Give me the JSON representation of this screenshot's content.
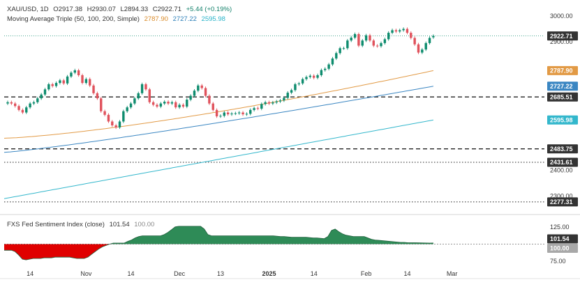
{
  "header": {
    "symbol": "XAU/USD, 1D",
    "open": "O2917.38",
    "high": "H2930.07",
    "low": "L2894.33",
    "close": "C2922.71",
    "change": "+5.44 (+0.19%)",
    "ma_title": "Moving Average Triple (50, 100, 200, Simple)",
    "ma50_value": "2787.90",
    "ma100_value": "2727.22",
    "ma200_value": "2595.98"
  },
  "indicator_header": {
    "title": "FXS Fed Sentiment Index (close)",
    "value": "101.54",
    "baseline": "100.00"
  },
  "colors": {
    "up": "#0e8c6e",
    "down": "#e0525c",
    "ma50": "#e29a45",
    "ma100": "#3a86c2",
    "ma200": "#33b7cc",
    "sentiment_above": "#2e8b57",
    "sentiment_below": "#e00000",
    "price_tag": "#333333"
  },
  "chart_data": [
    {
      "type": "candlestick",
      "y_axis": {
        "ylim": [
          2250,
          3030
        ],
        "ticks": [
          "3000.00",
          "2900.00",
          "2400.00",
          "2300.00"
        ]
      },
      "x_axis": {
        "ticks": [
          "14",
          "Nov",
          "14",
          "Dec",
          "13",
          "2025",
          "14",
          "Feb",
          "14",
          "Mar"
        ],
        "tick_index": [
          6,
          21,
          33,
          46,
          57,
          70,
          82,
          96,
          107,
          119
        ]
      },
      "price_labels": [
        {
          "label": "2922.71",
          "value": 2922.71,
          "kind": "last"
        },
        {
          "label": "2787.90",
          "value": 2787.9,
          "kind": "ma50"
        },
        {
          "label": "2727.22",
          "value": 2727.22,
          "kind": "ma100"
        },
        {
          "label": "2685.51",
          "value": 2685.51,
          "kind": "level"
        },
        {
          "label": "2595.98",
          "value": 2595.98,
          "kind": "ma200"
        },
        {
          "label": "2483.75",
          "value": 2483.75,
          "kind": "level"
        },
        {
          "label": "2431.61",
          "value": 2431.61,
          "kind": "level"
        },
        {
          "label": "2277.31",
          "value": 2277.31,
          "kind": "level"
        }
      ],
      "horizontal_levels": [
        {
          "value": 2685.51,
          "style": "dashed"
        },
        {
          "value": 2483.75,
          "style": "dashed"
        },
        {
          "value": 2431.61,
          "style": "dotted"
        },
        {
          "value": 2277.31,
          "style": "dotted"
        }
      ],
      "closes": [
        2665,
        2660,
        2650,
        2635,
        2625,
        2645,
        2660,
        2665,
        2680,
        2695,
        2715,
        2735,
        2728,
        2740,
        2750,
        2738,
        2765,
        2780,
        2789,
        2770,
        2740,
        2755,
        2730,
        2700,
        2680,
        2630,
        2616,
        2590,
        2575,
        2567,
        2590,
        2630,
        2645,
        2660,
        2680,
        2700,
        2735,
        2715,
        2665,
        2655,
        2648,
        2660,
        2667,
        2660,
        2665,
        2645,
        2655,
        2648,
        2675,
        2690,
        2710,
        2730,
        2720,
        2690,
        2660,
        2635,
        2610,
        2612,
        2625,
        2618,
        2621,
        2622,
        2625,
        2618,
        2620,
        2635,
        2642,
        2640,
        2658,
        2665,
        2660,
        2664,
        2668,
        2672,
        2682,
        2702,
        2712,
        2735,
        2738,
        2755,
        2763,
        2768,
        2760,
        2770,
        2790,
        2795,
        2812,
        2835,
        2856,
        2875,
        2875,
        2905,
        2916,
        2930,
        2885,
        2905,
        2925,
        2905,
        2885,
        2883,
        2895,
        2910,
        2935,
        2945,
        2940,
        2945,
        2950,
        2935,
        2915,
        2890,
        2858,
        2870,
        2895,
        2915,
        2922.71
      ],
      "opens": [
        2660,
        2665,
        2660,
        2650,
        2635,
        2625,
        2645,
        2660,
        2665,
        2680,
        2695,
        2715,
        2735,
        2728,
        2740,
        2750,
        2738,
        2765,
        2780,
        2789,
        2770,
        2740,
        2755,
        2730,
        2700,
        2680,
        2630,
        2616,
        2590,
        2575,
        2567,
        2590,
        2630,
        2645,
        2660,
        2680,
        2700,
        2735,
        2715,
        2665,
        2655,
        2648,
        2660,
        2667,
        2660,
        2665,
        2645,
        2655,
        2648,
        2675,
        2690,
        2710,
        2730,
        2720,
        2690,
        2660,
        2635,
        2610,
        2612,
        2625,
        2618,
        2621,
        2622,
        2625,
        2618,
        2620,
        2635,
        2642,
        2640,
        2658,
        2665,
        2660,
        2664,
        2668,
        2672,
        2682,
        2702,
        2712,
        2735,
        2738,
        2755,
        2763,
        2768,
        2760,
        2770,
        2790,
        2795,
        2812,
        2835,
        2856,
        2875,
        2875,
        2905,
        2916,
        2930,
        2885,
        2905,
        2925,
        2905,
        2885,
        2883,
        2895,
        2910,
        2935,
        2945,
        2940,
        2945,
        2950,
        2935,
        2915,
        2890,
        2858,
        2870,
        2895,
        2917.38
      ],
      "series": [
        {
          "name": "50",
          "values_start": 2525,
          "values_end": 2787.9
        },
        {
          "name": "100",
          "values_start": 2470,
          "values_end": 2727.22
        },
        {
          "name": "200",
          "values_start": 2290,
          "values_end": 2595.98
        }
      ]
    },
    {
      "type": "area",
      "title": "FXS Fed Sentiment Index (close)",
      "y_axis": {
        "ylim": [
          70,
          135
        ],
        "ticks": [
          "125.00",
          "75.00"
        ]
      },
      "baseline": 100,
      "price_labels": [
        {
          "label": "101.54",
          "value": 101.54,
          "kind": "last"
        },
        {
          "label": "100.00",
          "value": 100.0,
          "kind": "baseline"
        }
      ],
      "values": [
        91,
        91,
        91,
        89,
        84,
        78,
        77,
        78,
        79,
        79,
        79,
        80,
        80,
        80,
        81,
        81,
        81,
        81,
        81,
        80,
        79,
        79,
        79,
        81,
        85,
        89,
        93,
        96,
        98,
        100,
        101.5,
        101.5,
        101.5,
        101.5,
        104,
        106,
        109,
        111,
        112,
        112,
        112,
        112,
        112,
        112,
        114,
        117,
        121,
        125,
        126,
        126,
        126,
        126,
        126,
        126,
        126,
        122,
        114,
        112,
        112,
        112,
        112,
        112,
        112,
        112,
        112,
        112,
        112,
        112,
        112,
        112,
        112,
        112,
        112,
        112,
        112,
        111.5,
        111,
        111,
        110.5,
        110,
        110,
        110,
        110,
        110,
        109.5,
        109,
        109,
        108.5,
        108,
        111,
        120,
        122,
        118,
        115,
        113,
        112,
        111,
        111,
        111,
        111,
        109,
        107,
        106,
        105.5,
        105,
        104.5,
        104,
        103.5,
        103,
        102.5,
        102.5,
        102,
        102,
        102,
        101.8,
        101.7,
        101.6,
        101.5,
        101.54
      ]
    }
  ]
}
